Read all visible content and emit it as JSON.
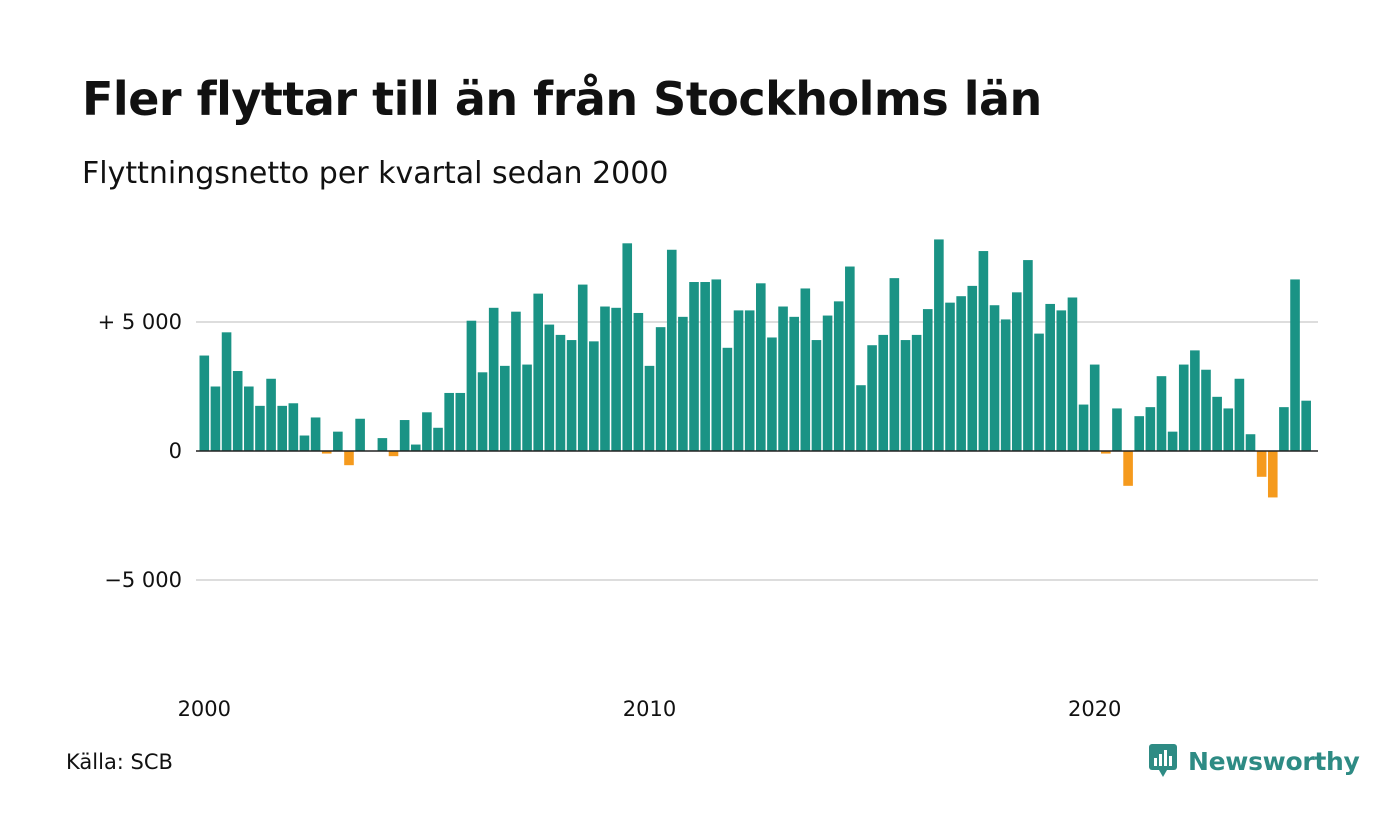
{
  "header": {
    "title": "Fler flyttar till än från Stockholms län",
    "subtitle": "Flyttningsnetto per kvartal sedan 2000"
  },
  "footer": {
    "source": "Källa: SCB",
    "brand": "Newsworthy"
  },
  "colors": {
    "positive": "#1a9385",
    "negative": "#f59a1d",
    "gridline": "#dddddd",
    "zeroline": "#222222",
    "brand": "#2e8b84"
  },
  "chart_data": {
    "type": "bar",
    "x_start": "2000 Q1",
    "x_ticks": [
      {
        "label": "2000",
        "value": 2000
      },
      {
        "label": "2010",
        "value": 2010
      },
      {
        "label": "2020",
        "value": 2020
      }
    ],
    "y_ticks": [
      {
        "label": "+ 5 000",
        "value": 5000
      },
      {
        "label": "0",
        "value": 0
      },
      {
        "label": "−5 000",
        "value": -5000
      }
    ],
    "ylim": [
      -9000,
      8500
    ],
    "grid": true,
    "values": [
      3700,
      2500,
      4600,
      3100,
      2500,
      1750,
      2800,
      1750,
      1850,
      600,
      1300,
      -100,
      750,
      -550,
      1250,
      0,
      500,
      -200,
      1200,
      250,
      1500,
      900,
      2250,
      2250,
      5050,
      3050,
      5550,
      3300,
      5400,
      3350,
      6100,
      4900,
      4500,
      4300,
      6450,
      4250,
      5600,
      5550,
      8050,
      5350,
      3300,
      4800,
      7800,
      5200,
      6550,
      6550,
      6650,
      4000,
      5450,
      5450,
      6500,
      4400,
      5600,
      5200,
      6300,
      4300,
      5250,
      5800,
      7150,
      2550,
      4100,
      4500,
      6700,
      4300,
      4500,
      5500,
      8200,
      5750,
      6000,
      6400,
      7750,
      5650,
      5100,
      6150,
      7400,
      4550,
      5700,
      5450,
      5950,
      1800,
      3350,
      -100,
      1650,
      -1350,
      1350,
      1700,
      2900,
      750,
      3350,
      3900,
      3150,
      2100,
      1650,
      2800,
      650,
      -1000,
      -1800,
      1700,
      6650,
      1950
    ]
  }
}
